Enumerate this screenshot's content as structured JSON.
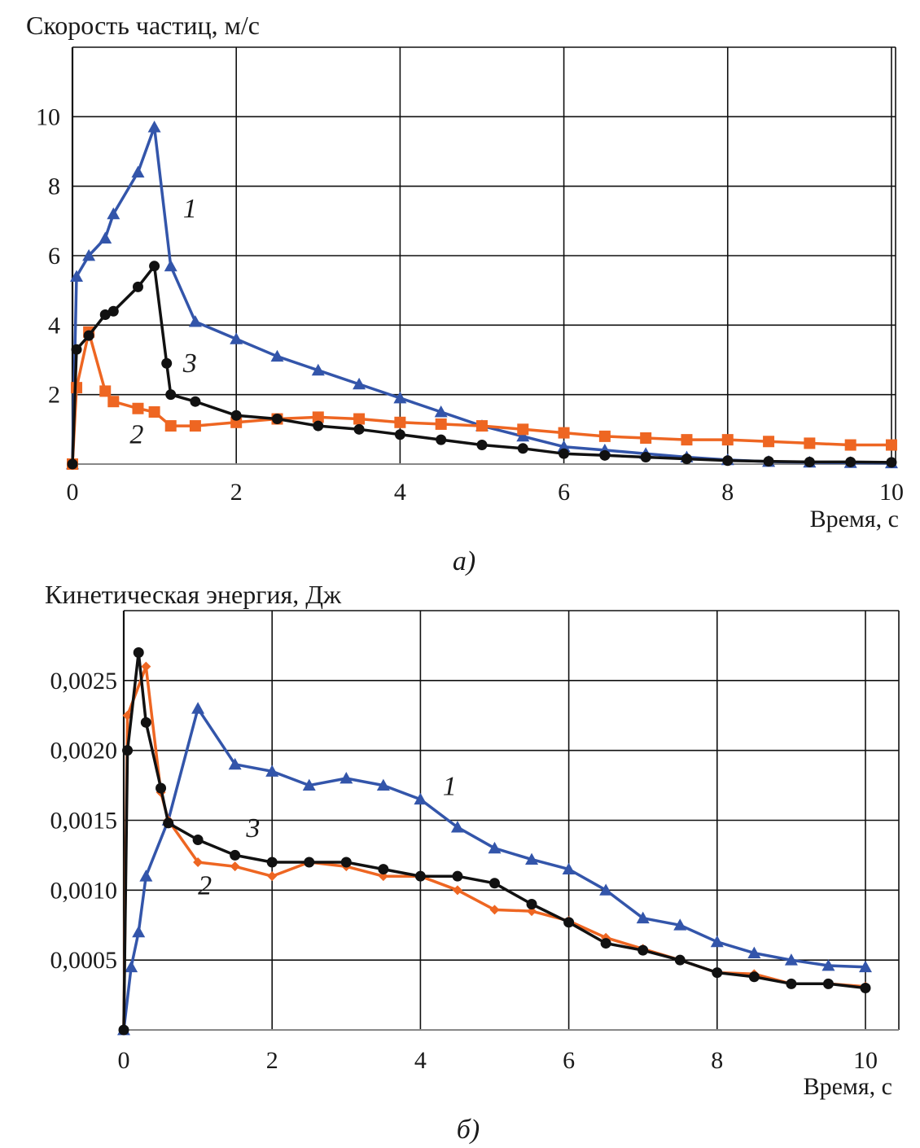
{
  "chart_data": [
    {
      "type": "line",
      "panel_label": "а)",
      "title": "Скорость частиц, м/с",
      "xlabel": "Время, с",
      "ylabel": "",
      "xlim": [
        0,
        10
      ],
      "ylim": [
        0,
        12
      ],
      "xticks": [
        0,
        2,
        4,
        6,
        8,
        10
      ],
      "xtick_labels": [
        "0",
        "2",
        "4",
        "6",
        "8",
        "10"
      ],
      "yticks": [
        2,
        4,
        6,
        8,
        10
      ],
      "ytick_labels": [
        "2",
        "4",
        "6",
        "8",
        "10"
      ],
      "grid": true,
      "series": [
        {
          "name": "1",
          "color": "#3355aa",
          "marker": "triangle",
          "x": [
            0,
            0.05,
            0.2,
            0.4,
            0.5,
            0.8,
            1.0,
            1.2,
            1.5,
            2.0,
            2.5,
            3.0,
            3.5,
            4.0,
            4.5,
            5.0,
            5.5,
            6.0,
            6.5,
            7.0,
            7.5,
            8.0,
            8.5,
            9.0,
            9.5,
            10.0
          ],
          "y": [
            0,
            5.4,
            6.0,
            6.5,
            7.2,
            8.4,
            9.7,
            5.7,
            4.1,
            3.6,
            3.1,
            2.7,
            2.3,
            1.9,
            1.5,
            1.1,
            0.8,
            0.5,
            0.4,
            0.3,
            0.2,
            0.12,
            0.07,
            0.05,
            0.04,
            0.03
          ]
        },
        {
          "name": "2",
          "color": "#ee6622",
          "marker": "square",
          "x": [
            0,
            0.05,
            0.2,
            0.4,
            0.5,
            0.8,
            1.0,
            1.2,
            1.5,
            2.0,
            2.5,
            3.0,
            3.5,
            4.0,
            4.5,
            5.0,
            5.5,
            6.0,
            6.5,
            7.0,
            7.5,
            8.0,
            8.5,
            9.0,
            9.5,
            10.0
          ],
          "y": [
            0,
            2.2,
            3.8,
            2.1,
            1.8,
            1.6,
            1.5,
            1.1,
            1.1,
            1.2,
            1.3,
            1.35,
            1.3,
            1.2,
            1.15,
            1.1,
            1.0,
            0.9,
            0.8,
            0.75,
            0.7,
            0.7,
            0.65,
            0.6,
            0.55,
            0.55
          ]
        },
        {
          "name": "3",
          "color": "#111111",
          "marker": "circle",
          "x": [
            0,
            0.05,
            0.2,
            0.4,
            0.5,
            0.8,
            1.0,
            1.15,
            1.2,
            1.5,
            2.0,
            2.5,
            3.0,
            3.5,
            4.0,
            4.5,
            5.0,
            5.5,
            6.0,
            6.5,
            7.0,
            7.5,
            8.0,
            8.5,
            9.0,
            9.5,
            10.0
          ],
          "y": [
            0,
            3.3,
            3.7,
            4.3,
            4.4,
            5.1,
            5.7,
            2.9,
            2.0,
            1.8,
            1.4,
            1.3,
            1.1,
            1.0,
            0.85,
            0.7,
            0.55,
            0.45,
            0.3,
            0.25,
            0.2,
            0.15,
            0.1,
            0.08,
            0.06,
            0.06,
            0.05
          ]
        }
      ],
      "annotations": [
        {
          "text": "1",
          "x": 1.35,
          "y": 7.1
        },
        {
          "text": "3",
          "x": 1.35,
          "y": 2.65
        },
        {
          "text": "2",
          "x": 0.7,
          "y": 0.6
        }
      ]
    },
    {
      "type": "line",
      "panel_label": "б)",
      "title": "Кинетическая энергия, Дж",
      "xlabel": "Время, с",
      "ylabel": "",
      "xlim": [
        0,
        10
      ],
      "ylim": [
        0,
        0.003
      ],
      "xticks": [
        0,
        2,
        4,
        6,
        8,
        10
      ],
      "xtick_labels": [
        "0",
        "2",
        "4",
        "6",
        "8",
        "10"
      ],
      "yticks": [
        0.0005,
        0.001,
        0.0015,
        0.002,
        0.0025
      ],
      "ytick_labels": [
        "0,0005",
        "0,0010",
        "0,0015",
        "0,0020",
        "0,0025"
      ],
      "grid": true,
      "series": [
        {
          "name": "1",
          "color": "#3355aa",
          "marker": "triangle",
          "x": [
            0,
            0.1,
            0.2,
            0.3,
            0.6,
            1.0,
            1.5,
            2.0,
            2.5,
            3.0,
            3.5,
            4.0,
            4.5,
            5.0,
            5.5,
            6.0,
            6.5,
            7.0,
            7.5,
            8.0,
            8.5,
            9.0,
            9.5,
            10.0
          ],
          "y": [
            0,
            0.00045,
            0.0007,
            0.0011,
            0.0015,
            0.0023,
            0.0019,
            0.00185,
            0.00175,
            0.0018,
            0.00175,
            0.00165,
            0.00145,
            0.0013,
            0.00122,
            0.00115,
            0.001,
            0.0008,
            0.00075,
            0.00063,
            0.00055,
            0.0005,
            0.00046,
            0.00045
          ]
        },
        {
          "name": "2",
          "color": "#ee6622",
          "marker": "diamond",
          "x": [
            0,
            0.05,
            0.3,
            0.5,
            0.6,
            1.0,
            1.5,
            2.0,
            2.5,
            3.0,
            3.5,
            4.0,
            4.5,
            5.0,
            5.5,
            6.0,
            6.5,
            7.0,
            7.5,
            8.0,
            8.5,
            9.0,
            9.5,
            10.0
          ],
          "y": [
            0,
            0.00225,
            0.0026,
            0.0017,
            0.0015,
            0.0012,
            0.00117,
            0.0011,
            0.0012,
            0.00117,
            0.0011,
            0.0011,
            0.001,
            0.00086,
            0.00085,
            0.00078,
            0.00066,
            0.00058,
            0.0005,
            0.00041,
            0.0004,
            0.00033,
            0.00033,
            0.00031
          ]
        },
        {
          "name": "3",
          "color": "#111111",
          "marker": "circle",
          "x": [
            0,
            0.05,
            0.2,
            0.3,
            0.5,
            0.6,
            1.0,
            1.5,
            2.0,
            2.5,
            3.0,
            3.5,
            4.0,
            4.5,
            5.0,
            5.5,
            6.0,
            6.5,
            7.0,
            7.5,
            8.0,
            8.5,
            9.0,
            9.5,
            10.0
          ],
          "y": [
            0,
            0.002,
            0.0027,
            0.0022,
            0.00173,
            0.00148,
            0.00136,
            0.00125,
            0.0012,
            0.0012,
            0.0012,
            0.00115,
            0.0011,
            0.0011,
            0.00105,
            0.0009,
            0.00077,
            0.00062,
            0.00057,
            0.0005,
            0.00041,
            0.00038,
            0.00033,
            0.00033,
            0.0003
          ]
        }
      ],
      "annotations": [
        {
          "text": "1",
          "x": 4.3,
          "y": 0.00168
        },
        {
          "text": "3",
          "x": 1.65,
          "y": 0.00138
        },
        {
          "text": "2",
          "x": 1.0,
          "y": 0.00097
        }
      ]
    }
  ]
}
